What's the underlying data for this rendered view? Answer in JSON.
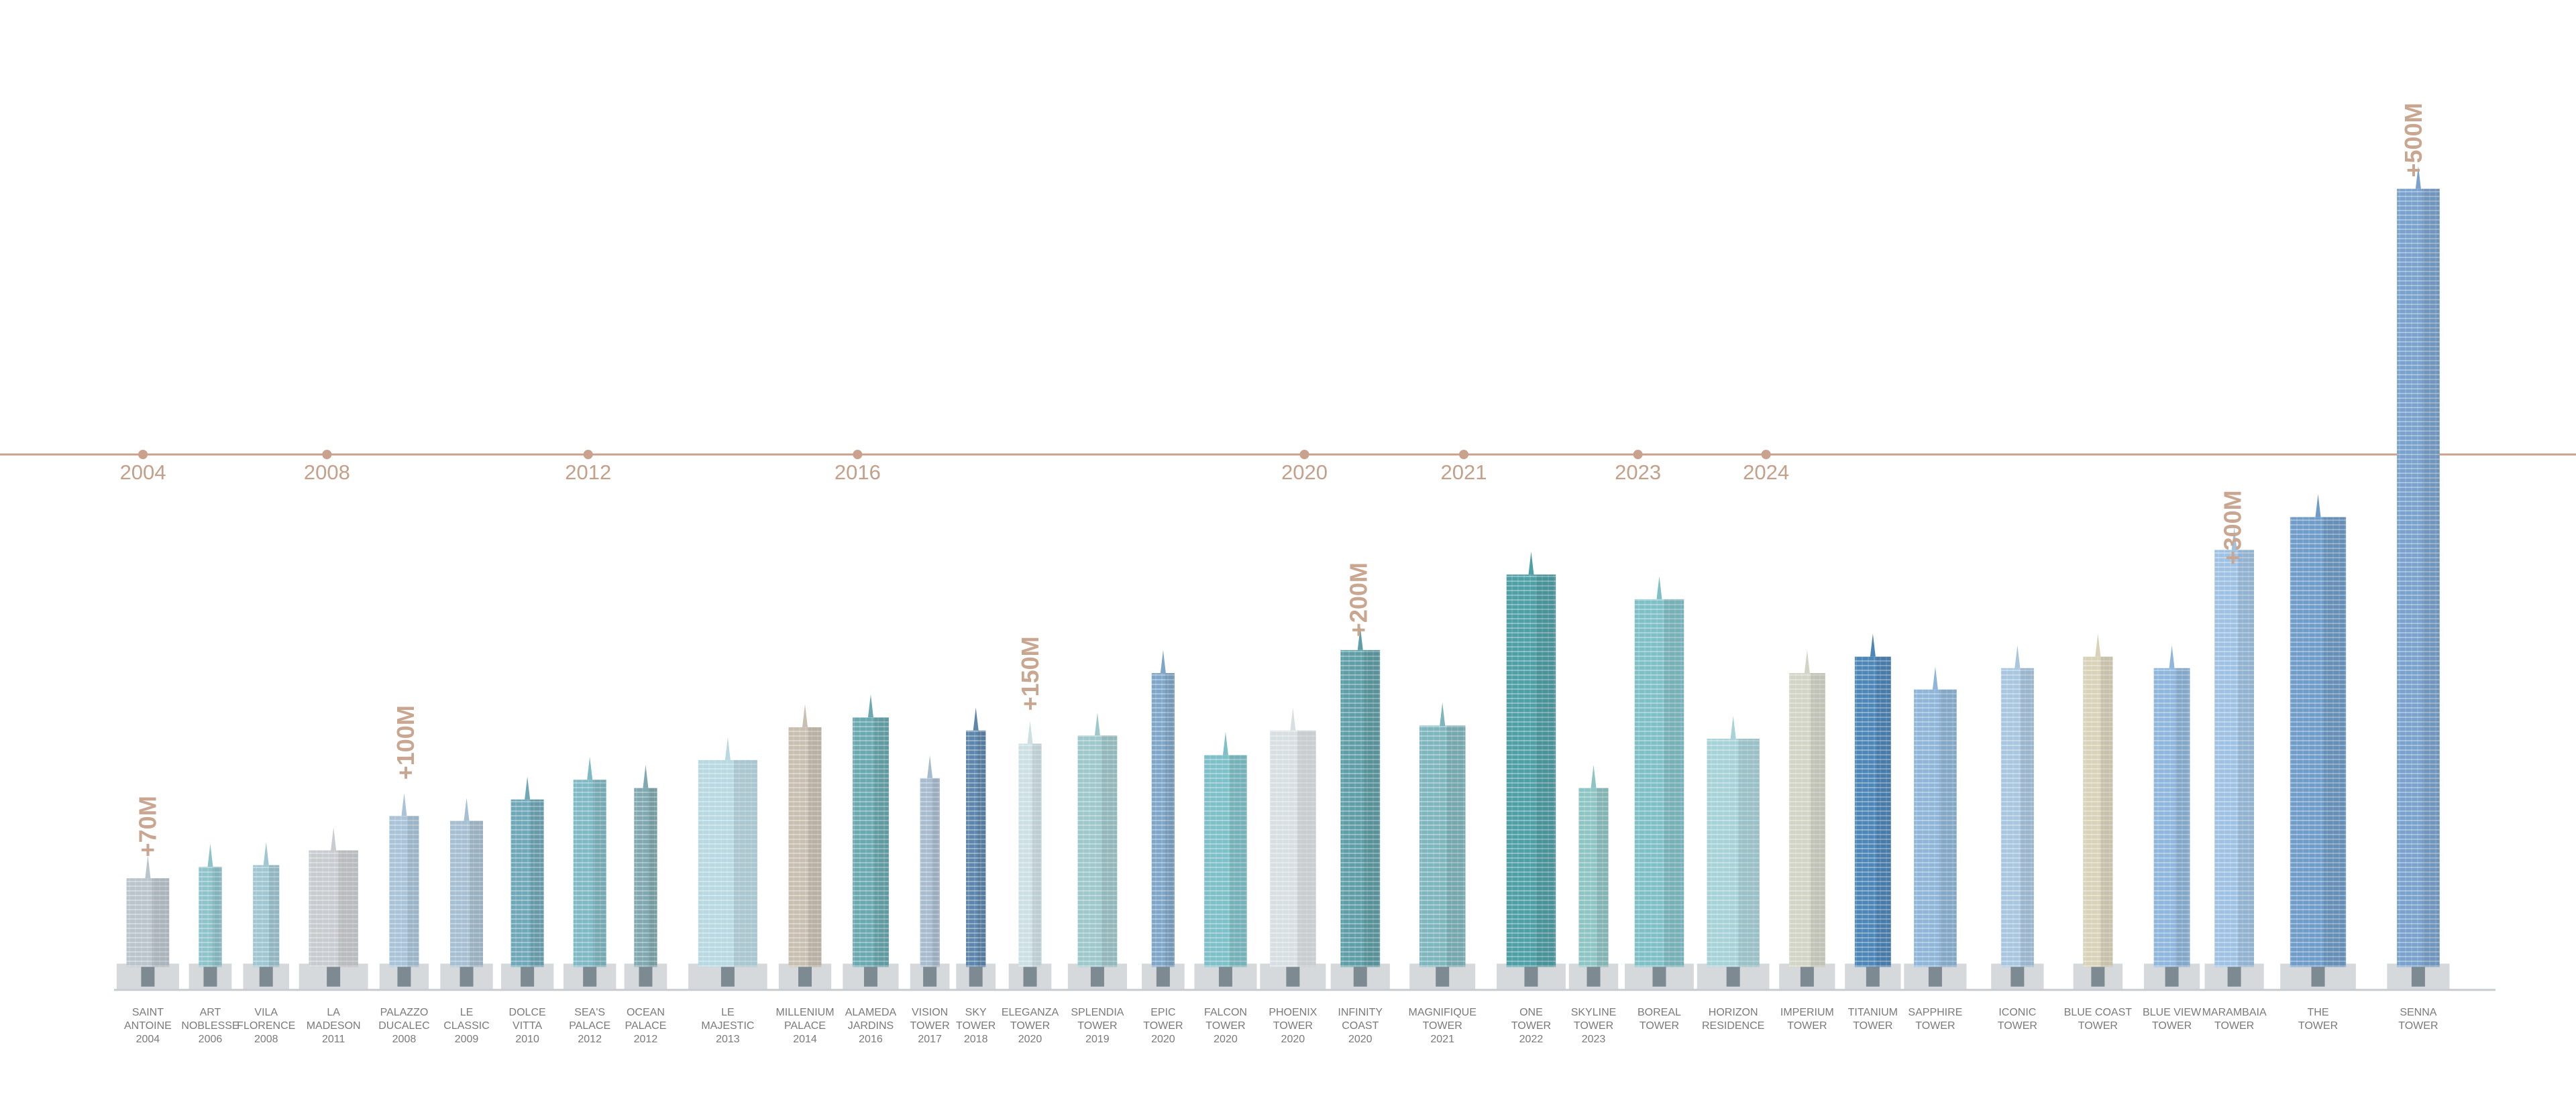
{
  "timeline": {
    "years": [
      "2004",
      "2008",
      "2012",
      "2016",
      "2020",
      "2021",
      "2023",
      "2024"
    ]
  },
  "milestones": [
    "+70M",
    "+100M",
    "+150M",
    "+200M",
    "+300M",
    "+500M"
  ],
  "towers": [
    {
      "name": "SAINT\nANTOINE",
      "year": "2004"
    },
    {
      "name": "ART\nNOBLESSE",
      "year": "2006"
    },
    {
      "name": "VILA\nFLORENCE",
      "year": "2008"
    },
    {
      "name": "LA\nMADESON",
      "year": "2011"
    },
    {
      "name": "PALAZZO\nDUCALEC",
      "year": "2008"
    },
    {
      "name": "LE\nCLASSIC",
      "year": "2009"
    },
    {
      "name": "DOLCE\nVITTA",
      "year": "2010"
    },
    {
      "name": "SEA'S\nPALACE",
      "year": "2012"
    },
    {
      "name": "OCEAN\nPALACE",
      "year": "2012"
    },
    {
      "name": "LE\nMAJESTIC",
      "year": "2013"
    },
    {
      "name": "MILLENIUM\nPALACE",
      "year": "2014"
    },
    {
      "name": "ALAMEDA\nJARDINS",
      "year": "2016"
    },
    {
      "name": "VISION\nTOWER",
      "year": "2017"
    },
    {
      "name": "SKY\nTOWER",
      "year": "2018"
    },
    {
      "name": "ELEGANZA\nTOWER",
      "year": "2020"
    },
    {
      "name": "SPLENDIA\nTOWER",
      "year": "2019"
    },
    {
      "name": "EPIC\nTOWER",
      "year": "2020"
    },
    {
      "name": "FALCON\nTOWER",
      "year": "2020"
    },
    {
      "name": "PHOENIX\nTOWER",
      "year": "2020"
    },
    {
      "name": "INFINITY\nCOAST",
      "year": "2020"
    },
    {
      "name": "MAGNIFIQUE\nTOWER",
      "year": "2021"
    },
    {
      "name": "ONE\nTOWER",
      "year": "2022"
    },
    {
      "name": "SKYLINE\nTOWER",
      "year": "2023"
    },
    {
      "name": "BOREAL\nTOWER"
    },
    {
      "name": "HORIZON\nRESIDENCE"
    },
    {
      "name": "IMPERIUM\nTOWER"
    },
    {
      "name": "TITANIUM\nTOWER"
    },
    {
      "name": "SAPPHIRE\nTOWER"
    },
    {
      "name": "ICONIC\nTOWER"
    },
    {
      "name": "BLUE COAST\nTOWER"
    },
    {
      "name": "BLUE VIEW\nTOWER"
    },
    {
      "name": "MARAMBAIA\nTOWER"
    },
    {
      "name": "THE\nTOWER"
    },
    {
      "name": "SENNA\nTOWER"
    }
  ]
}
